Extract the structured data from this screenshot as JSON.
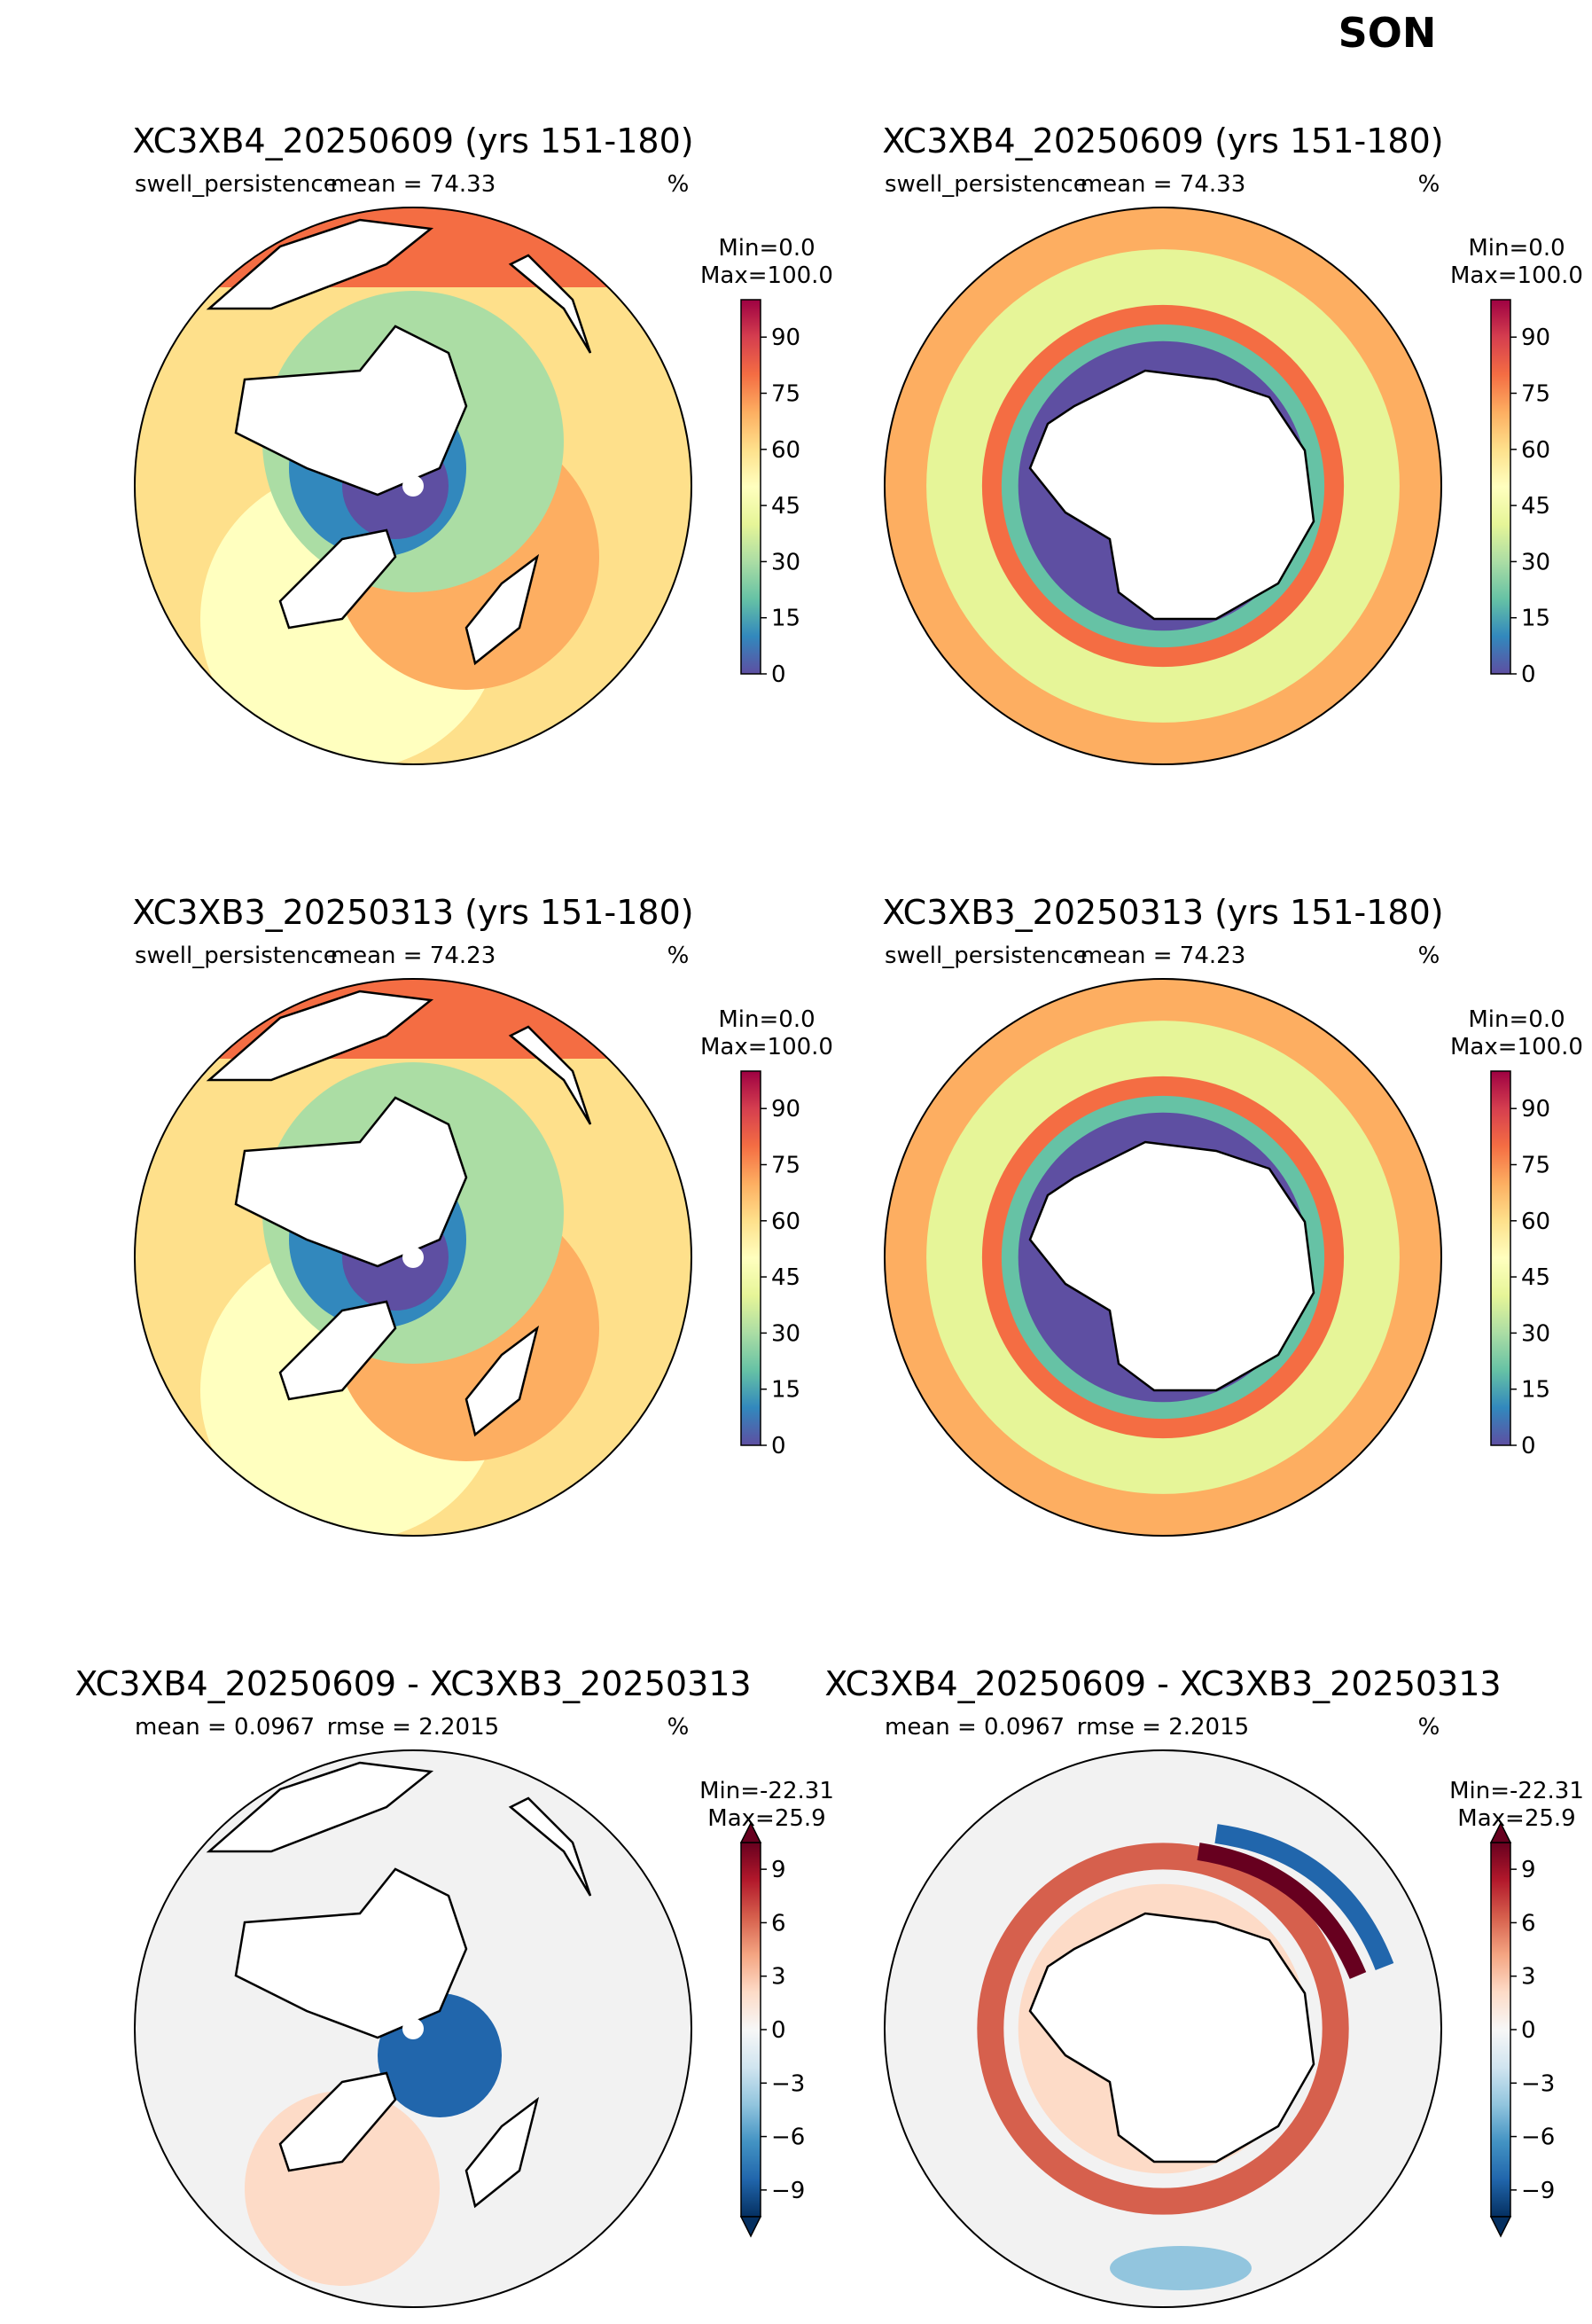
{
  "season": "SON",
  "chart_data": [
    {
      "type": "heatmap",
      "projection": "north-polar-stereographic",
      "title": "XC3XB4_20250609 (yrs 151-180)",
      "variable": "swell_persistence",
      "mean_label": "mean = 74.33",
      "units": "%",
      "min_label": "Min=0.0",
      "max_label": "Max=100.0",
      "colormap": "Spectral_r",
      "colorbar_ticks": [
        0,
        15,
        30,
        45,
        60,
        75,
        90
      ],
      "colorbar_range": [
        0,
        100
      ]
    },
    {
      "type": "heatmap",
      "projection": "south-polar-stereographic",
      "title": "XC3XB4_20250609 (yrs 151-180)",
      "variable": "swell_persistence",
      "mean_label": "mean = 74.33",
      "units": "%",
      "min_label": "Min=0.0",
      "max_label": "Max=100.0",
      "colormap": "Spectral_r",
      "colorbar_ticks": [
        0,
        15,
        30,
        45,
        60,
        75,
        90
      ],
      "colorbar_range": [
        0,
        100
      ]
    },
    {
      "type": "heatmap",
      "projection": "north-polar-stereographic",
      "title": "XC3XB3_20250313 (yrs 151-180)",
      "variable": "swell_persistence",
      "mean_label": "mean = 74.23",
      "units": "%",
      "min_label": "Min=0.0",
      "max_label": "Max=100.0",
      "colormap": "Spectral_r",
      "colorbar_ticks": [
        0,
        15,
        30,
        45,
        60,
        75,
        90
      ],
      "colorbar_range": [
        0,
        100
      ]
    },
    {
      "type": "heatmap",
      "projection": "south-polar-stereographic",
      "title": "XC3XB3_20250313 (yrs 151-180)",
      "variable": "swell_persistence",
      "mean_label": "mean = 74.23",
      "units": "%",
      "min_label": "Min=0.0",
      "max_label": "Max=100.0",
      "colormap": "Spectral_r",
      "colorbar_ticks": [
        0,
        15,
        30,
        45,
        60,
        75,
        90
      ],
      "colorbar_range": [
        0,
        100
      ]
    },
    {
      "type": "heatmap",
      "projection": "north-polar-stereographic",
      "title": "XC3XB4_20250609 - XC3XB3_20250313",
      "variable": "mean = 0.0967",
      "mean_label": "rmse = 2.2015",
      "units": "%",
      "min_label": "Min=-22.31",
      "max_label": "Max=25.9",
      "colormap": "RdBu_r",
      "colorbar_ticks": [
        -9,
        -6,
        -3,
        0,
        3,
        6,
        9
      ],
      "colorbar_range": [
        -10.5,
        10.5
      ],
      "colorbar_extend": "both"
    },
    {
      "type": "heatmap",
      "projection": "south-polar-stereographic",
      "title": "XC3XB4_20250609 - XC3XB3_20250313",
      "variable": "mean = 0.0967",
      "mean_label": "rmse = 2.2015",
      "units": "%",
      "min_label": "Min=-22.31",
      "max_label": "Max=25.9",
      "colormap": "RdBu_r",
      "colorbar_ticks": [
        -9,
        -6,
        -3,
        0,
        3,
        6,
        9
      ],
      "colorbar_range": [
        -10.5,
        10.5
      ],
      "colorbar_extend": "both"
    }
  ]
}
